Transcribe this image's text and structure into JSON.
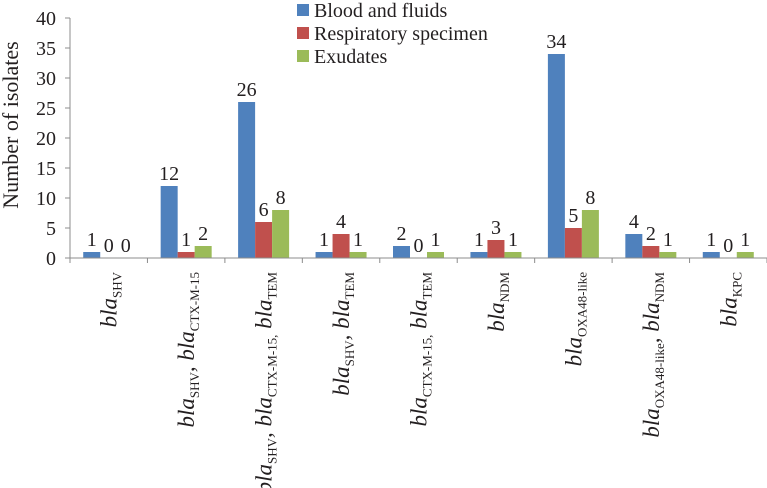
{
  "chart_data": {
    "type": "bar",
    "ylabel": "Number of isolates",
    "xlabel": "",
    "ylim": [
      0,
      40
    ],
    "yticks": [
      0,
      5,
      10,
      15,
      20,
      25,
      30,
      35,
      40
    ],
    "grid": false,
    "legend_position": "top-center",
    "categories": [
      [
        {
          "t": "bla"
        },
        {
          "s": "SHV"
        }
      ],
      [
        {
          "t": "bla"
        },
        {
          "s": "SHV"
        },
        {
          "t": ", bla"
        },
        {
          "s": "CTX-M-15"
        }
      ],
      [
        {
          "t": "bla"
        },
        {
          "s": "SHV"
        },
        {
          "t": ", bla"
        },
        {
          "s": "CTX-M-15,"
        },
        {
          "t": " bla"
        },
        {
          "s": "TEM"
        }
      ],
      [
        {
          "t": "bla"
        },
        {
          "s": "SHV"
        },
        {
          "t": ", bla"
        },
        {
          "s": "TEM"
        }
      ],
      [
        {
          "t": "bla"
        },
        {
          "s": "CTX-M-15,"
        },
        {
          "t": " bla"
        },
        {
          "s": "TEM"
        }
      ],
      [
        {
          "t": "bla"
        },
        {
          "s": "NDM"
        }
      ],
      [
        {
          "t": "bla"
        },
        {
          "s": "OXA48-like"
        }
      ],
      [
        {
          "t": "bla"
        },
        {
          "s": "OXA48-like"
        },
        {
          "t": ", bla"
        },
        {
          "s": "NDM"
        }
      ],
      [
        {
          "t": "bla"
        },
        {
          "s": "KPC"
        }
      ]
    ],
    "series": [
      {
        "name": "Blood and fluids",
        "color": "#4f81bd",
        "values": [
          1,
          12,
          26,
          1,
          2,
          1,
          34,
          4,
          1
        ],
        "labels": [
          "1",
          "12",
          "26",
          "1",
          "2",
          "1",
          "34",
          "4",
          "1"
        ]
      },
      {
        "name": "Respiratory specimen",
        "color": "#c0504d",
        "values": [
          0,
          1,
          6,
          4,
          0,
          3,
          5,
          2,
          0
        ],
        "labels": [
          "0",
          "1",
          "6",
          "4",
          "0",
          "3",
          "5",
          "2",
          "0"
        ]
      },
      {
        "name": "Exudates",
        "color": "#9bbb59",
        "values": [
          0,
          2,
          8,
          1,
          1,
          1,
          8,
          1,
          1
        ],
        "labels": [
          "0",
          "2",
          "8",
          "1",
          "1",
          "1",
          "8",
          "1",
          "1"
        ]
      }
    ]
  }
}
